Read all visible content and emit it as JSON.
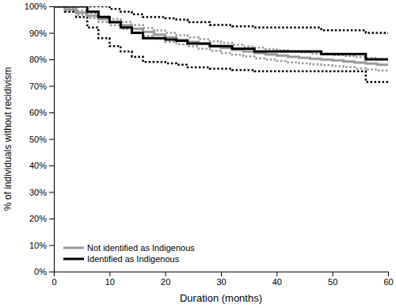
{
  "chart_data": {
    "type": "step",
    "x_label": "Duration (months)",
    "y_label": "% of individuals without recidivism",
    "x": [
      0,
      2,
      4,
      6,
      8,
      10,
      12,
      14,
      16,
      18,
      20,
      22,
      24,
      26,
      28,
      30,
      32,
      34,
      36,
      38,
      40,
      42,
      44,
      46,
      48,
      50,
      52,
      54,
      56,
      58,
      60
    ],
    "series": [
      {
        "name": "Not identified as Indigenous",
        "color": "#999999",
        "line_style": "solid",
        "values": [
          100,
          98.8,
          97.6,
          96.4,
          95.2,
          94.0,
          92.8,
          91.6,
          90.4,
          89.3,
          88.3,
          87.4,
          86.6,
          85.8,
          85.0,
          84.3,
          83.6,
          83.0,
          82.4,
          81.9,
          81.4,
          81.0,
          80.6,
          80.2,
          79.9,
          79.6,
          79.2,
          78.8,
          78.4,
          78.0,
          77.6
        ],
        "lower": [
          100,
          98.2,
          96.9,
          95.5,
          94.1,
          92.8,
          91.5,
          90.2,
          88.9,
          87.7,
          86.6,
          85.7,
          84.9,
          84.0,
          83.2,
          82.4,
          81.7,
          81.1,
          80.4,
          79.9,
          79.4,
          78.9,
          78.5,
          78.1,
          77.8,
          77.5,
          77.1,
          76.6,
          76.2,
          75.8,
          75.4
        ],
        "upper": [
          100,
          99.3,
          98.3,
          97.3,
          96.3,
          95.2,
          94.1,
          93.0,
          91.9,
          90.9,
          90.0,
          89.1,
          88.3,
          87.6,
          86.8,
          86.2,
          85.5,
          84.9,
          84.4,
          83.9,
          83.4,
          83.0,
          82.6,
          82.2,
          81.9,
          81.6,
          81.3,
          80.9,
          80.5,
          80.1,
          79.8
        ]
      },
      {
        "name": "Identified as Indigenous",
        "color": "#000000",
        "line_style": "solid",
        "values": [
          100,
          100,
          100,
          98,
          96,
          94,
          92,
          90,
          88,
          88,
          87.5,
          87,
          86,
          86,
          85,
          85,
          84,
          84,
          83,
          83,
          83,
          83,
          83,
          83,
          82,
          82,
          82,
          82,
          80,
          80,
          80
        ],
        "lower": [
          100,
          98,
          96,
          92,
          88,
          85,
          83,
          81,
          79,
          79,
          78.5,
          78,
          77,
          77,
          76.5,
          76.5,
          76,
          76,
          75.5,
          75.5,
          75.5,
          75.5,
          75.5,
          75.5,
          75.5,
          75.5,
          75.5,
          75.5,
          71.5,
          71.5,
          71.5
        ],
        "upper": [
          100,
          100,
          100,
          100,
          100,
          99,
          98,
          97,
          96,
          96,
          95.5,
          95,
          94,
          94,
          93,
          93,
          92.5,
          92.5,
          92,
          92,
          92,
          92,
          92,
          92,
          91,
          91,
          91,
          91,
          90,
          90,
          90
        ]
      }
    ],
    "xlim": [
      0,
      60
    ],
    "xticks": [
      0,
      10,
      20,
      30,
      40,
      50,
      60
    ],
    "ylim": [
      0,
      100
    ],
    "yticks": [
      {
        "value": 0,
        "label": "0%"
      },
      {
        "value": 10,
        "label": "10%"
      },
      {
        "value": 20,
        "label": "20%"
      },
      {
        "value": 30,
        "label": "30%"
      },
      {
        "value": 40,
        "label": "40%"
      },
      {
        "value": 50,
        "label": "50%"
      },
      {
        "value": 60,
        "label": "60%"
      },
      {
        "value": 70,
        "label": "70%"
      },
      {
        "value": 80,
        "label": "80%"
      },
      {
        "value": 90,
        "label": "90%"
      },
      {
        "value": 100,
        "label": "100%"
      }
    ],
    "grid": false,
    "legend": "lower left"
  }
}
